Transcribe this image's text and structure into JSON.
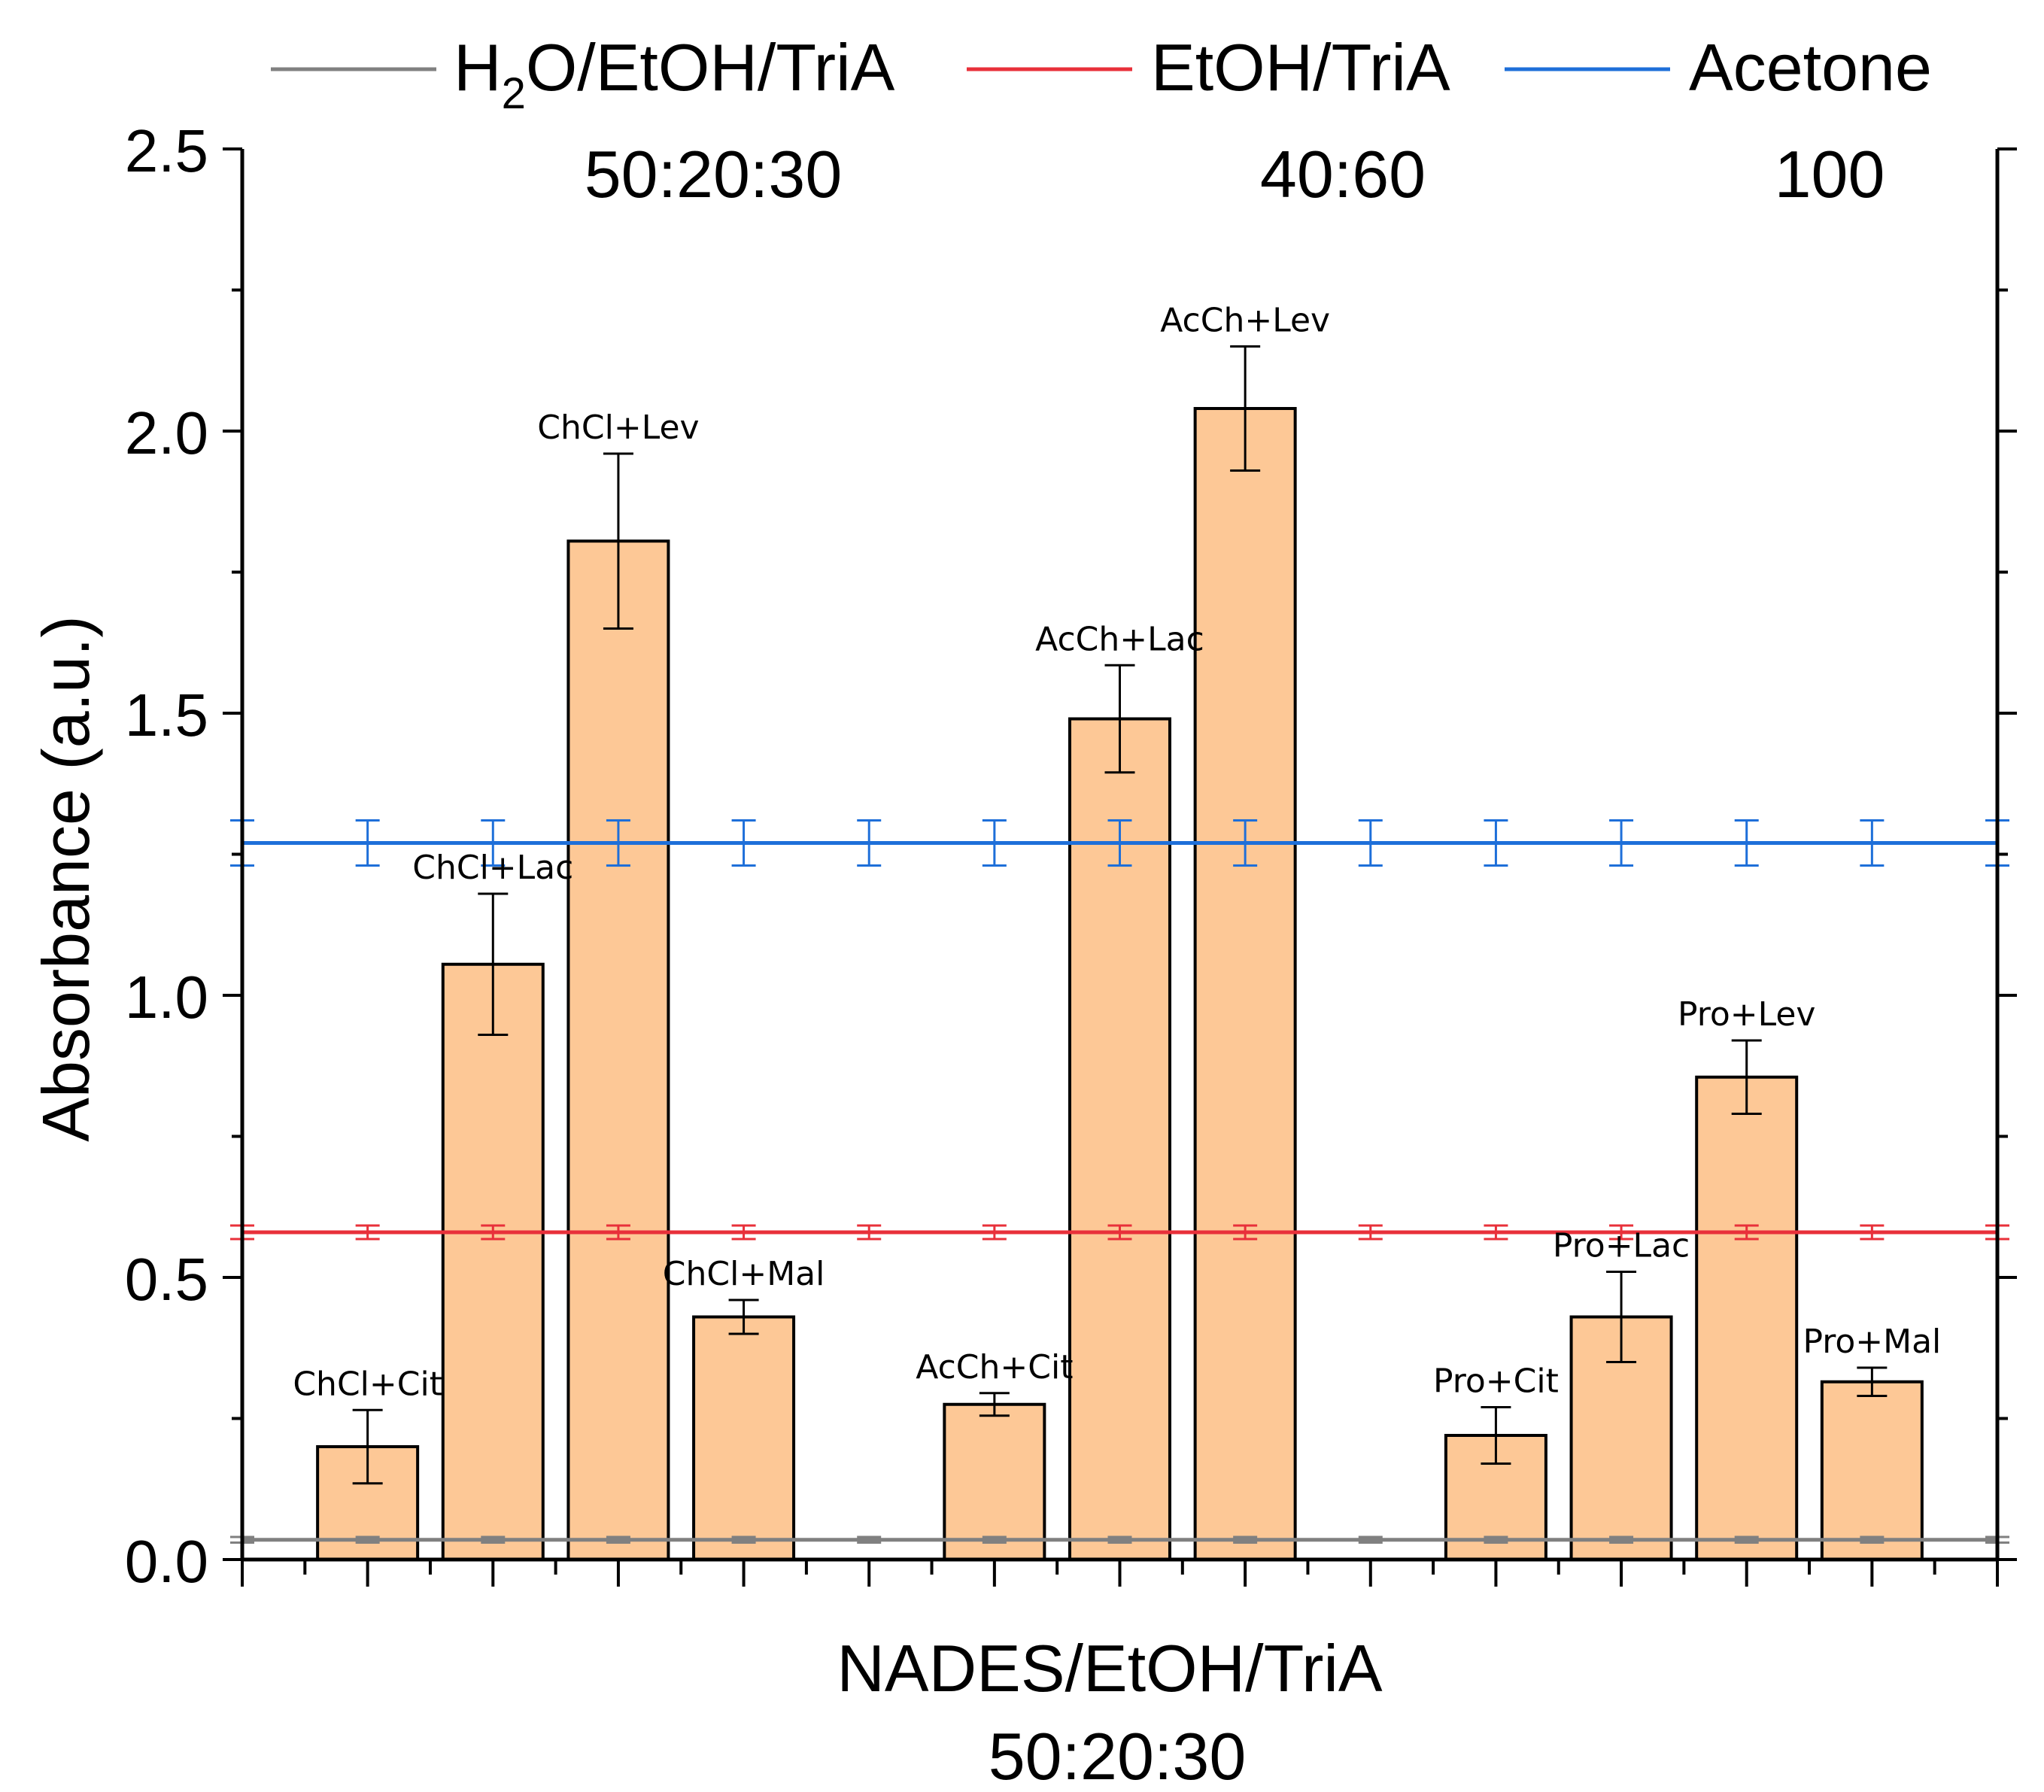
{
  "chart_data": {
    "type": "bar",
    "xlabel": "NADES/EtOH/TriA",
    "xlabel_sub": "50:20:30",
    "ylabel": "Absorbance (a.u.)",
    "ylim": [
      0,
      2.5
    ],
    "y_ticks": [
      "0.0",
      "0.5",
      "1.0",
      "1.5",
      "2.0",
      "2.5"
    ],
    "n_slots": 14,
    "bar_color": "#fdc896",
    "categories": [
      "ChCl+Cit",
      "ChCl+Lac",
      "ChCl+Lev",
      "ChCl+Mal",
      "AcCh+Cit",
      "AcCh+Lac",
      "AcCh+Lev",
      "Pro+Cit",
      "Pro+Lac",
      "Pro+Lev",
      "Pro+Mal"
    ],
    "positions": [
      1,
      2,
      3,
      4,
      6,
      7,
      8,
      10,
      11,
      12,
      13
    ],
    "values": [
      0.2,
      1.055,
      1.805,
      0.43,
      0.275,
      1.49,
      2.04,
      0.22,
      0.43,
      0.855,
      0.315
    ],
    "errors": [
      0.065,
      0.125,
      0.155,
      0.03,
      0.02,
      0.095,
      0.11,
      0.05,
      0.08,
      0.065,
      0.025
    ],
    "reference_lines": [
      {
        "name": "H2O/EtOH/TriA",
        "legend_main": "H",
        "legend_sub": "2",
        "legend_rest": "O/EtOH/TriA",
        "ratio": "50:20:30",
        "value": 0.035,
        "error": 0.005,
        "color": "#808080"
      },
      {
        "name": "EtOH/TriA",
        "legend_main": "EtOH/TriA",
        "legend_sub": "",
        "legend_rest": "",
        "ratio": "40:60",
        "value": 0.58,
        "error": 0.012,
        "color": "#e8303a"
      },
      {
        "name": "Acetone",
        "legend_main": "Acetone",
        "legend_sub": "",
        "legend_rest": "",
        "ratio": "100",
        "value": 1.27,
        "error": 0.04,
        "color": "#1e6fd9"
      }
    ]
  }
}
